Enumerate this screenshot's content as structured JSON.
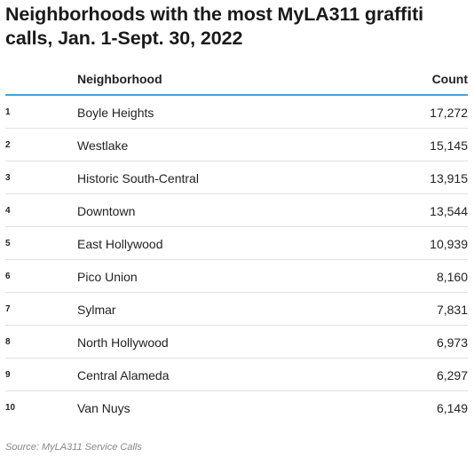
{
  "title": "Neighborhoods with the most MyLA311 graffiti calls, Jan. 1-Sept. 30, 2022",
  "source": "Source: MyLA311 Service Calls",
  "chart_data": {
    "type": "table",
    "title": "Neighborhoods with the most MyLA311 graffiti calls, Jan. 1-Sept. 30, 2022",
    "columns": [
      "",
      "Neighborhood",
      "Count"
    ],
    "rows": [
      {
        "rank": "1",
        "neighborhood": "Boyle Heights",
        "count": "17,272"
      },
      {
        "rank": "2",
        "neighborhood": "Westlake",
        "count": "15,145"
      },
      {
        "rank": "3",
        "neighborhood": "Historic South-Central",
        "count": "13,915"
      },
      {
        "rank": "4",
        "neighborhood": "Downtown",
        "count": "13,544"
      },
      {
        "rank": "5",
        "neighborhood": "East Hollywood",
        "count": "10,939"
      },
      {
        "rank": "6",
        "neighborhood": "Pico Union",
        "count": "8,160"
      },
      {
        "rank": "7",
        "neighborhood": "Sylmar",
        "count": "7,831"
      },
      {
        "rank": "8",
        "neighborhood": "North Hollywood",
        "count": "6,973"
      },
      {
        "rank": "9",
        "neighborhood": "Central Alameda",
        "count": "6,297"
      },
      {
        "rank": "10",
        "neighborhood": "Van Nuys",
        "count": "6,149"
      }
    ]
  },
  "colors": {
    "header_rule": "#47a1dd",
    "row_rule": "#e1e1e1",
    "text": "#222222",
    "source_text": "#888888"
  }
}
